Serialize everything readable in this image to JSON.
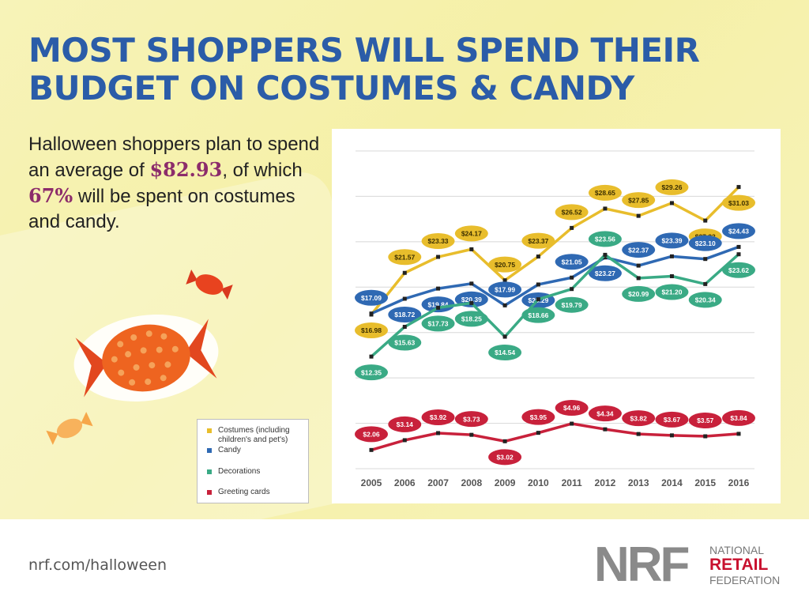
{
  "title_lines": [
    "MOST SHOPPERS WILL SPEND THEIR",
    "BUDGET ON COSTUMES & CANDY"
  ],
  "subtitle": {
    "part1": "Halloween shoppers plan to spend an average of ",
    "amount": "$82.93",
    "part2": ", of which ",
    "percent": "67%",
    "part3": " will be spent on costumes and candy."
  },
  "footer": {
    "url": "nrf.com/halloween",
    "logo_letters": "NRF",
    "logo_line1": "NATIONAL",
    "logo_line2": "RETAIL",
    "logo_line3": "FEDERATION"
  },
  "chart_data": {
    "type": "line",
    "categories": [
      "2005",
      "2006",
      "2007",
      "2008",
      "2009",
      "2010",
      "2011",
      "2012",
      "2013",
      "2014",
      "2015",
      "2016"
    ],
    "series": [
      {
        "name": "Costumes (including children's and pet's)",
        "color": "#e8bd2c",
        "values": [
          16.98,
          21.57,
          23.33,
          24.17,
          20.75,
          23.37,
          26.52,
          28.65,
          27.85,
          29.26,
          27.33,
          31.03
        ],
        "labels": [
          "$16.98",
          "$21.57",
          "$23.33",
          "$24.17",
          "$20.75",
          "$23.37",
          "$26.52",
          "$28.65",
          "$27.85",
          "$29.26",
          "$27.33",
          "$31.03"
        ]
      },
      {
        "name": "Candy",
        "color": "#2f69b3",
        "values": [
          17.09,
          18.72,
          19.84,
          20.39,
          17.99,
          20.29,
          21.05,
          23.27,
          22.37,
          23.39,
          23.1,
          24.43
        ],
        "labels": [
          "$17.09",
          "$18.72",
          "$19.84",
          "$20.39",
          "$17.99",
          "$20.29",
          "$21.05",
          "$23.27",
          "$22.37",
          "$23.39",
          "$23.10",
          "$24.43"
        ]
      },
      {
        "name": "Decorations",
        "color": "#3aaa85",
        "values": [
          12.35,
          15.63,
          17.73,
          18.25,
          14.54,
          18.66,
          19.79,
          23.56,
          20.99,
          21.2,
          20.34,
          23.62
        ],
        "labels": [
          "$12.35",
          "$15.63",
          "$17.73",
          "$18.25",
          "$14.54",
          "$18.66",
          "$19.79",
          "$23.56",
          "$20.99",
          "$21.20",
          "$20.34",
          "$23.62"
        ]
      },
      {
        "name": "Greeting cards",
        "color": "#c8213b",
        "values": [
          2.06,
          3.14,
          3.92,
          3.73,
          3.02,
          3.95,
          4.96,
          4.34,
          3.82,
          3.67,
          3.57,
          3.84
        ],
        "labels": [
          "$2.06",
          "$3.14",
          "$3.92",
          "$3.73",
          "$3.02",
          "$3.95",
          "$4.96",
          "$4.34",
          "$3.82",
          "$3.67",
          "$3.57",
          "$3.84"
        ]
      }
    ],
    "ylim": [
      0,
      35
    ],
    "grid": true,
    "legend_position": "bottom-left"
  }
}
